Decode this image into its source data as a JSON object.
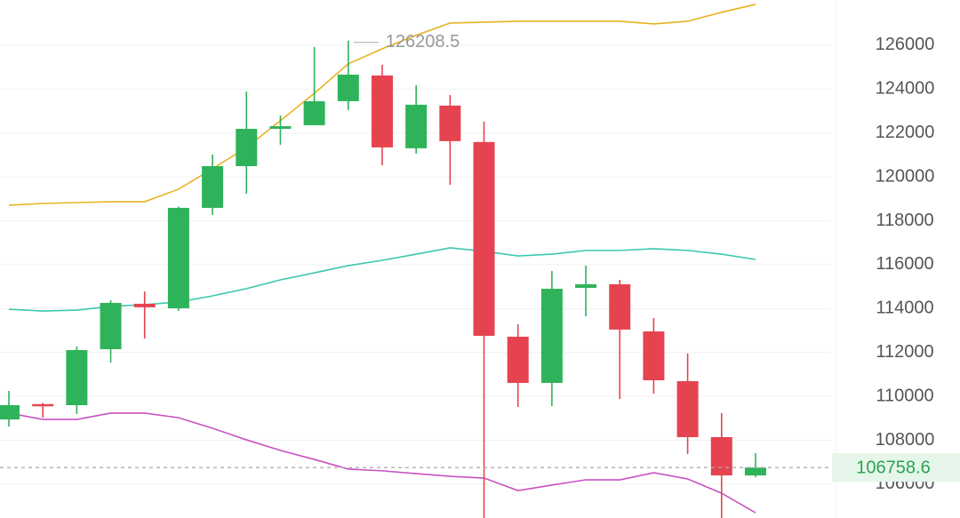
{
  "chart_data": {
    "type": "candlestick",
    "open": [
      108950,
      109650,
      109600,
      112150,
      114220,
      114015,
      118590,
      120490,
      122190,
      122355,
      123450,
      124620,
      121305,
      123250,
      121590,
      112720,
      110615,
      114945,
      115110,
      112960,
      110695,
      108145,
      106400
    ],
    "high": [
      110250,
      109700,
      112270,
      114380,
      114780,
      118650,
      121020,
      123890,
      122800,
      125920,
      126208.5,
      125110,
      124180,
      123730,
      122520,
      113285,
      115715,
      115960,
      115310,
      113570,
      111950,
      109235,
      107415
    ],
    "low": [
      108630,
      109035,
      109200,
      111545,
      112640,
      113900,
      118270,
      119240,
      121465,
      122355,
      123045,
      120535,
      121060,
      119640,
      103800,
      109520,
      109560,
      113650,
      109885,
      110130,
      107375,
      104000,
      106320
    ],
    "close": [
      109600,
      109550,
      112110,
      114260,
      114060,
      118590,
      120490,
      122190,
      122310,
      123450,
      124660,
      121345,
      123290,
      121630,
      112760,
      110615,
      114905,
      115110,
      113045,
      110735,
      108145,
      106400,
      106758.6
    ],
    "up_color": "#2fb35a",
    "down_color": "#e5434f",
    "bands": [
      {
        "color": "#e8b322",
        "values": [
          118710,
          118790,
          118830,
          118870,
          118870,
          119440,
          120370,
          121340,
          122560,
          123810,
          125150,
          125840,
          126450,
          127010,
          127050,
          127090,
          127090,
          127090,
          127090,
          126970,
          127090,
          127500,
          127860
        ]
      },
      {
        "color": "#3cc8ae",
        "values": [
          113970,
          113890,
          113930,
          114100,
          114180,
          114300,
          114580,
          114910,
          115310,
          115630,
          115960,
          116200,
          116480,
          116770,
          116610,
          116400,
          116480,
          116650,
          116650,
          116730,
          116650,
          116480,
          116240
        ]
      },
      {
        "color": "#c951c2",
        "values": [
          109240,
          108950,
          108950,
          109240,
          109240,
          109030,
          108550,
          108020,
          107540,
          107130,
          106690,
          106610,
          106480,
          106360,
          106280,
          105710,
          105960,
          106200,
          106200,
          106520,
          106240,
          105590,
          104700
        ]
      }
    ],
    "ylim": [
      104460,
      128060
    ],
    "yticks": [
      106000,
      108000,
      110000,
      112000,
      114000,
      116000,
      118000,
      120000,
      122000,
      124000,
      126000
    ],
    "grid": true
  }
}
